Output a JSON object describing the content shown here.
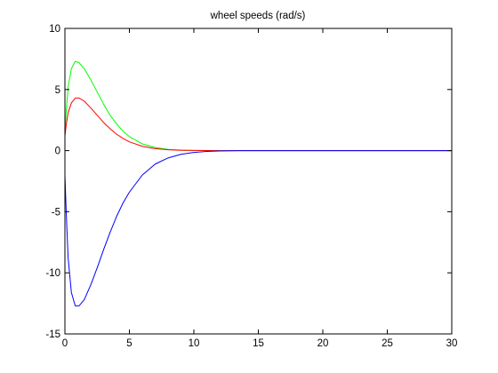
{
  "chart_data": {
    "type": "line",
    "title": "wheel speeds (rad/s)",
    "xlabel": "",
    "ylabel": "",
    "xlim": [
      0,
      30
    ],
    "ylim": [
      -15,
      10
    ],
    "xticks": [
      0,
      5,
      10,
      15,
      20,
      25,
      30
    ],
    "yticks": [
      -15,
      -10,
      -5,
      0,
      5,
      10
    ],
    "grid": false,
    "legend": "none",
    "series": [
      {
        "color": "#00ff00",
        "points": [
          [
            0,
            1.5
          ],
          [
            0.1,
            3.2
          ],
          [
            0.25,
            5.2
          ],
          [
            0.5,
            6.7
          ],
          [
            0.8,
            7.3
          ],
          [
            1.1,
            7.2
          ],
          [
            1.5,
            6.7
          ],
          [
            2,
            5.8
          ],
          [
            2.5,
            4.8
          ],
          [
            3,
            3.8
          ],
          [
            3.5,
            2.9
          ],
          [
            4,
            2.2
          ],
          [
            4.5,
            1.6
          ],
          [
            5,
            1.15
          ],
          [
            6,
            0.55
          ],
          [
            7,
            0.25
          ],
          [
            8,
            0.1
          ],
          [
            9,
            0.04
          ],
          [
            10,
            0.015
          ],
          [
            11,
            0.005
          ],
          [
            12,
            0.0
          ],
          [
            30,
            0.0
          ]
        ]
      },
      {
        "color": "#ff0000",
        "points": [
          [
            0,
            1.2
          ],
          [
            0.1,
            2.1
          ],
          [
            0.25,
            3.1
          ],
          [
            0.5,
            3.9
          ],
          [
            0.8,
            4.3
          ],
          [
            1.1,
            4.3
          ],
          [
            1.5,
            4.05
          ],
          [
            2,
            3.5
          ],
          [
            2.5,
            2.9
          ],
          [
            3,
            2.3
          ],
          [
            3.5,
            1.8
          ],
          [
            4,
            1.35
          ],
          [
            4.5,
            1.0
          ],
          [
            5,
            0.72
          ],
          [
            6,
            0.35
          ],
          [
            7,
            0.16
          ],
          [
            8,
            0.07
          ],
          [
            9,
            0.03
          ],
          [
            10,
            0.012
          ],
          [
            11,
            0.004
          ],
          [
            12,
            0.0
          ],
          [
            30,
            0.0
          ]
        ]
      },
      {
        "color": "#0000ff",
        "points": [
          [
            0,
            -2.0
          ],
          [
            0.1,
            -5.0
          ],
          [
            0.25,
            -8.8
          ],
          [
            0.5,
            -11.6
          ],
          [
            0.8,
            -12.7
          ],
          [
            1.1,
            -12.7
          ],
          [
            1.5,
            -12.2
          ],
          [
            2,
            -11.0
          ],
          [
            2.5,
            -9.6
          ],
          [
            3,
            -8.1
          ],
          [
            3.5,
            -6.7
          ],
          [
            4,
            -5.4
          ],
          [
            4.5,
            -4.3
          ],
          [
            5,
            -3.4
          ],
          [
            6,
            -2.0
          ],
          [
            7,
            -1.1
          ],
          [
            8,
            -0.6
          ],
          [
            9,
            -0.3
          ],
          [
            10,
            -0.15
          ],
          [
            11,
            -0.07
          ],
          [
            12,
            -0.03
          ],
          [
            13,
            -0.01
          ],
          [
            13.5,
            0.0
          ],
          [
            30,
            0.0
          ]
        ]
      }
    ]
  }
}
